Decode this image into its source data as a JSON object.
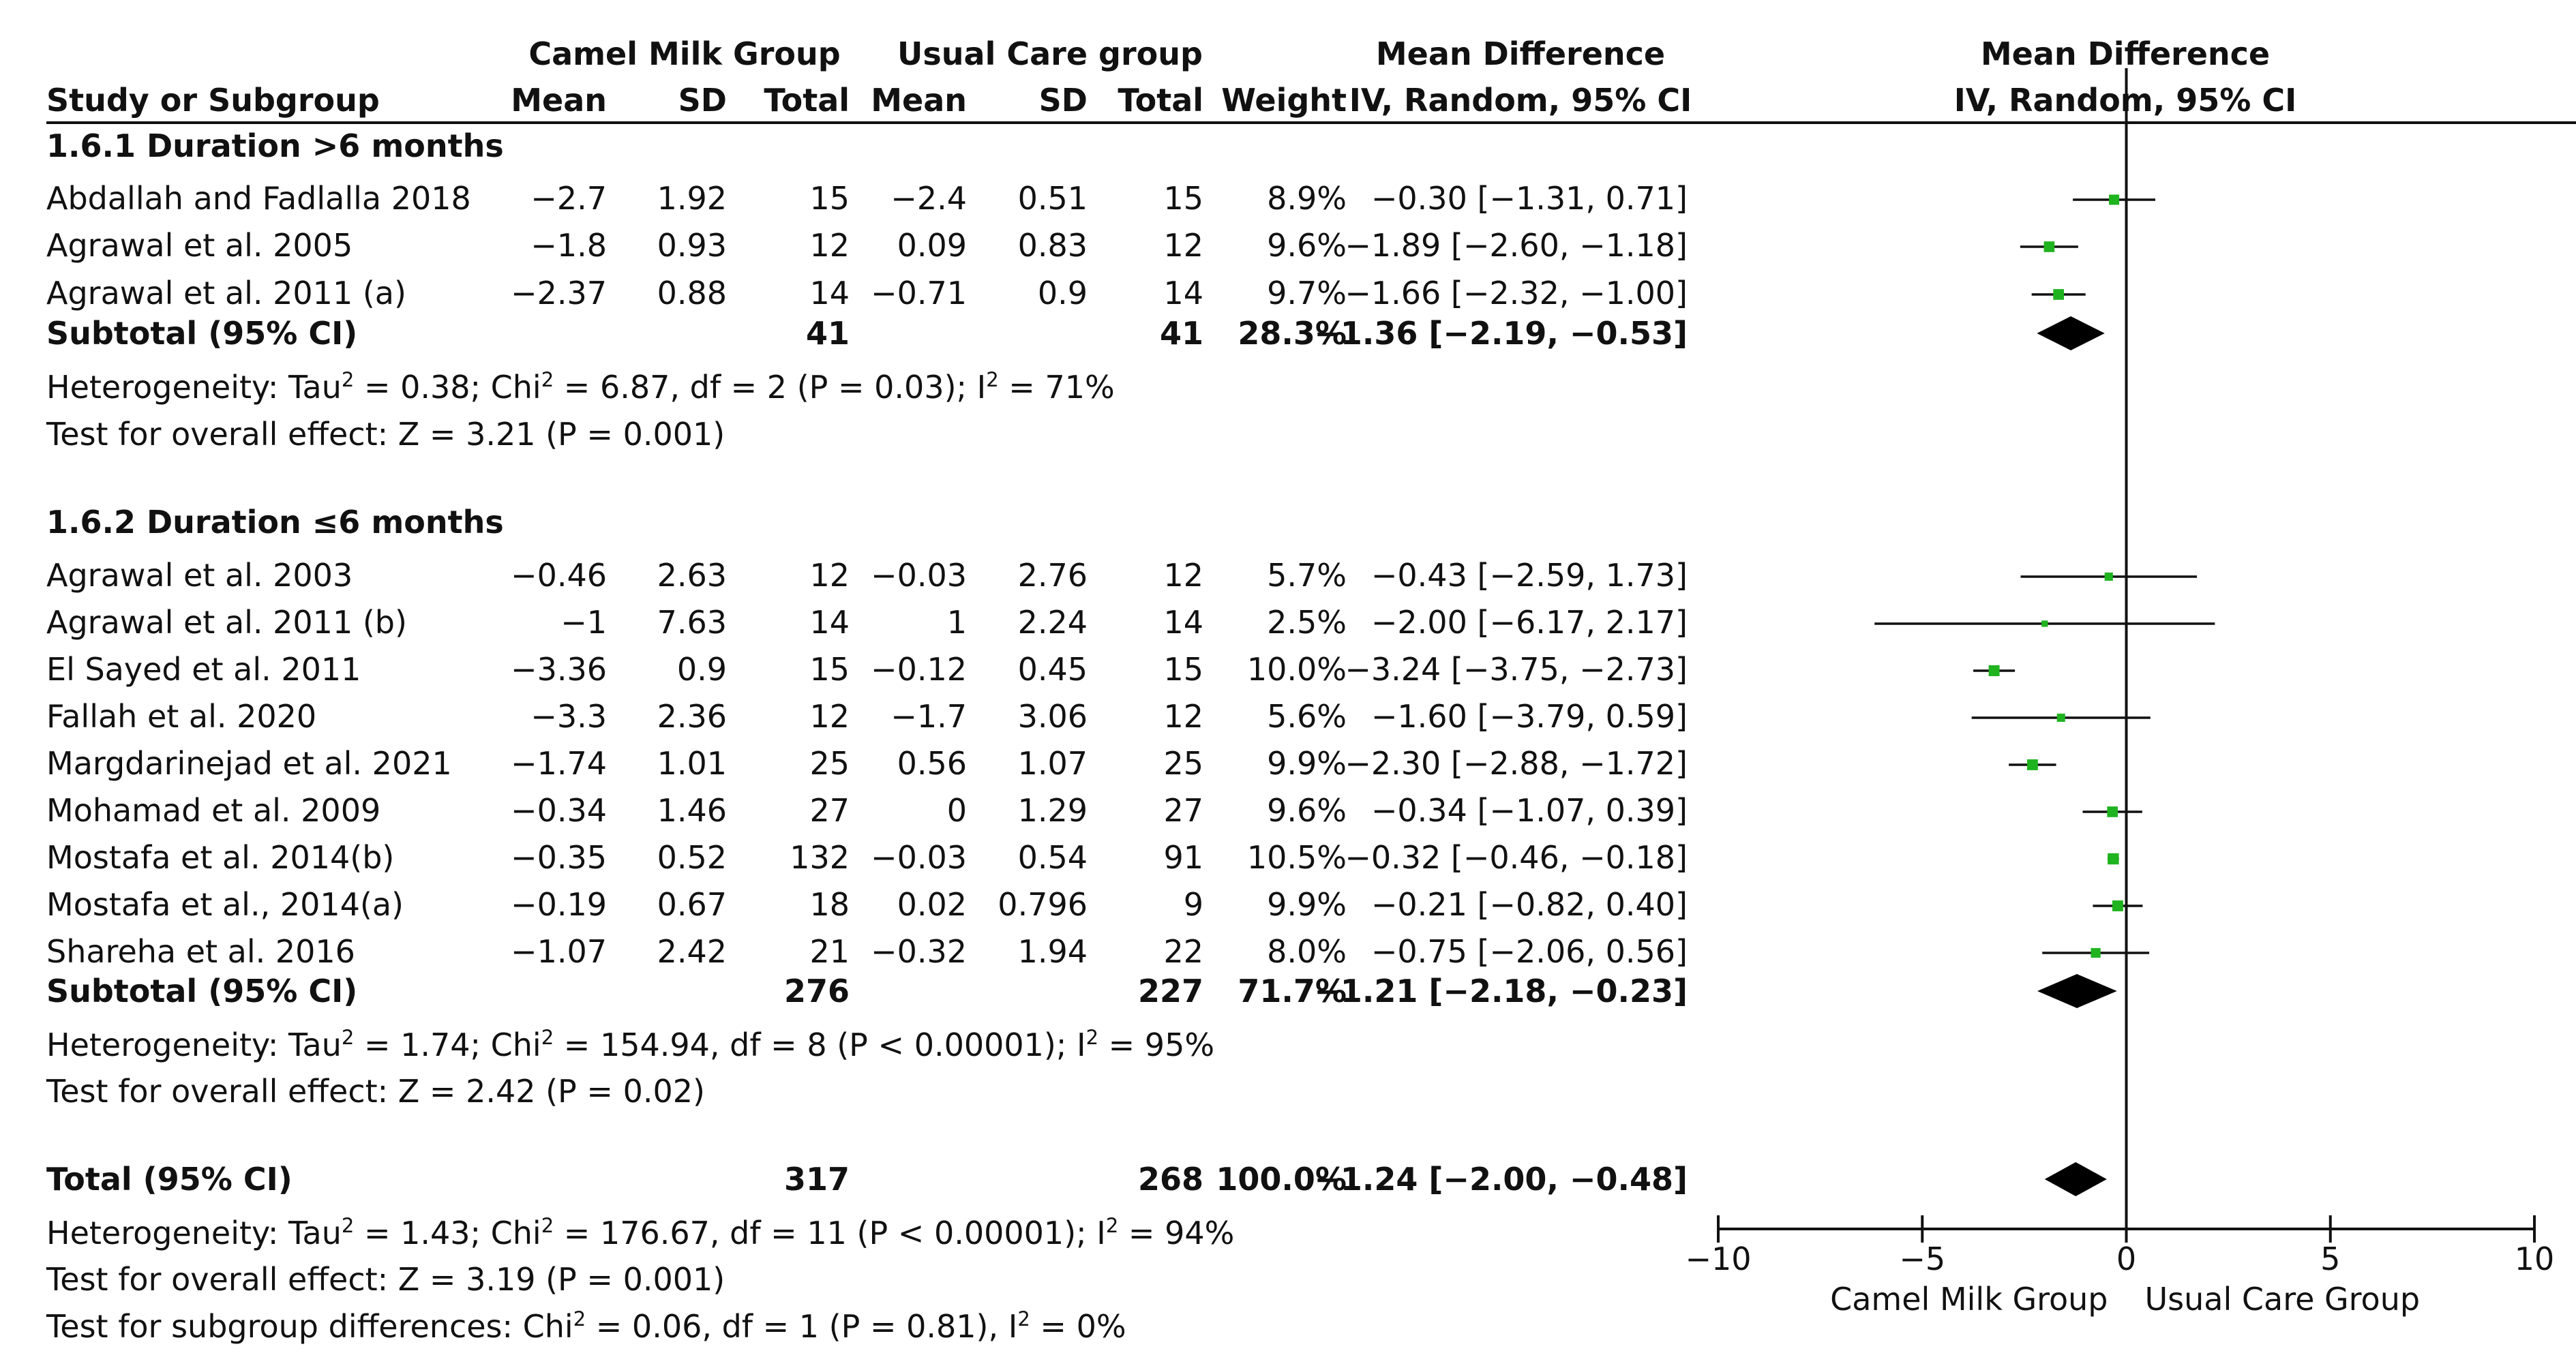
{
  "chart_data": {
    "type": "forest",
    "columns": {
      "study_header": "Study or Subgroup",
      "group1_name": "Camel Milk Group",
      "group2_name": "Usual Care group",
      "mean": "Mean",
      "sd": "SD",
      "total": "Total",
      "weight": "Weight",
      "md_title": "Mean Difference",
      "md_method": "IV, Random, 95% CI",
      "plot_title": "Mean Difference",
      "plot_method": "IV, Random, 95% CI"
    },
    "subgroups": [
      {
        "title": "1.6.1 Duration >6 months",
        "studies": [
          {
            "name": "Abdallah and Fadlalla 2018",
            "m1": "−2.7",
            "sd1": "1.92",
            "n1": "15",
            "m2": "−2.4",
            "sd2": "0.51",
            "n2": "15",
            "weight": "8.9%",
            "ci_text": "−0.30 [−1.31, 0.71]",
            "md": -0.3,
            "lo": -1.31,
            "hi": 0.71,
            "w": 8.9
          },
          {
            "name": "Agrawal et al. 2005",
            "m1": "−1.8",
            "sd1": "0.93",
            "n1": "12",
            "m2": "0.09",
            "sd2": "0.83",
            "n2": "12",
            "weight": "9.6%",
            "ci_text": "−1.89 [−2.60, −1.18]",
            "md": -1.89,
            "lo": -2.6,
            "hi": -1.18,
            "w": 9.6
          },
          {
            "name": "Agrawal et al. 2011 (a)",
            "m1": "−2.37",
            "sd1": "0.88",
            "n1": "14",
            "m2": "−0.71",
            "sd2": "0.9",
            "n2": "14",
            "weight": "9.7%",
            "ci_text": "−1.66 [−2.32, −1.00]",
            "md": -1.66,
            "lo": -2.32,
            "hi": -1.0,
            "w": 9.7
          }
        ],
        "subtotal": {
          "label": "Subtotal (95% CI)",
          "n1": "41",
          "n2": "41",
          "weight": "28.3%",
          "ci_text": "−1.36 [−2.19, −0.53]",
          "md": -1.36,
          "lo": -2.19,
          "hi": -0.53
        },
        "heterogeneity": {
          "prefix": "Heterogeneity: Tau",
          "sup1": "2",
          "mid1": " = 0.38; Chi",
          "sup2": "2",
          "mid2": " = 6.87, df = 2 (P = 0.03); I",
          "sup3": "2",
          "suffix": " = 71%"
        },
        "overall_effect": "Test for overall effect: Z = 3.21 (P = 0.001)"
      },
      {
        "title": "1.6.2 Duration ≤6 months",
        "studies": [
          {
            "name": "Agrawal et al. 2003",
            "m1": "−0.46",
            "sd1": "2.63",
            "n1": "12",
            "m2": "−0.03",
            "sd2": "2.76",
            "n2": "12",
            "weight": "5.7%",
            "ci_text": "−0.43 [−2.59, 1.73]",
            "md": -0.43,
            "lo": -2.59,
            "hi": 1.73,
            "w": 5.7
          },
          {
            "name": "Agrawal et al. 2011 (b)",
            "m1": "−1",
            "sd1": "7.63",
            "n1": "14",
            "m2": "1",
            "sd2": "2.24",
            "n2": "14",
            "weight": "2.5%",
            "ci_text": "−2.00 [−6.17, 2.17]",
            "md": -2.0,
            "lo": -6.17,
            "hi": 2.17,
            "w": 2.5
          },
          {
            "name": "El Sayed et al. 2011",
            "m1": "−3.36",
            "sd1": "0.9",
            "n1": "15",
            "m2": "−0.12",
            "sd2": "0.45",
            "n2": "15",
            "weight": "10.0%",
            "ci_text": "−3.24 [−3.75, −2.73]",
            "md": -3.24,
            "lo": -3.75,
            "hi": -2.73,
            "w": 10.0
          },
          {
            "name": "Fallah et al. 2020",
            "m1": "−3.3",
            "sd1": "2.36",
            "n1": "12",
            "m2": "−1.7",
            "sd2": "3.06",
            "n2": "12",
            "weight": "5.6%",
            "ci_text": "−1.60 [−3.79, 0.59]",
            "md": -1.6,
            "lo": -3.79,
            "hi": 0.59,
            "w": 5.6
          },
          {
            "name": "Margdarinejad et al. 2021",
            "m1": "−1.74",
            "sd1": "1.01",
            "n1": "25",
            "m2": "0.56",
            "sd2": "1.07",
            "n2": "25",
            "weight": "9.9%",
            "ci_text": "−2.30 [−2.88, −1.72]",
            "md": -2.3,
            "lo": -2.88,
            "hi": -1.72,
            "w": 9.9
          },
          {
            "name": "Mohamad et al. 2009",
            "m1": "−0.34",
            "sd1": "1.46",
            "n1": "27",
            "m2": "0",
            "sd2": "1.29",
            "n2": "27",
            "weight": "9.6%",
            "ci_text": "−0.34 [−1.07, 0.39]",
            "md": -0.34,
            "lo": -1.07,
            "hi": 0.39,
            "w": 9.6
          },
          {
            "name": "Mostafa et al. 2014(b)",
            "m1": "−0.35",
            "sd1": "0.52",
            "n1": "132",
            "m2": "−0.03",
            "sd2": "0.54",
            "n2": "91",
            "weight": "10.5%",
            "ci_text": "−0.32 [−0.46, −0.18]",
            "md": -0.32,
            "lo": -0.46,
            "hi": -0.18,
            "w": 10.5
          },
          {
            "name": "Mostafa et al., 2014(a)",
            "m1": "−0.19",
            "sd1": "0.67",
            "n1": "18",
            "m2": "0.02",
            "sd2": "0.796",
            "n2": "9",
            "weight": "9.9%",
            "ci_text": "−0.21 [−0.82, 0.40]",
            "md": -0.21,
            "lo": -0.82,
            "hi": 0.4,
            "w": 9.9
          },
          {
            "name": "Shareha et al. 2016",
            "m1": "−1.07",
            "sd1": "2.42",
            "n1": "21",
            "m2": "−0.32",
            "sd2": "1.94",
            "n2": "22",
            "weight": "8.0%",
            "ci_text": "−0.75 [−2.06, 0.56]",
            "md": -0.75,
            "lo": -2.06,
            "hi": 0.56,
            "w": 8.0
          }
        ],
        "subtotal": {
          "label": "Subtotal (95% CI)",
          "n1": "276",
          "n2": "227",
          "weight": "71.7%",
          "ci_text": "−1.21 [−2.18, −0.23]",
          "md": -1.21,
          "lo": -2.18,
          "hi": -0.23
        },
        "heterogeneity": {
          "prefix": "Heterogeneity: Tau",
          "sup1": "2",
          "mid1": " = 1.74; Chi",
          "sup2": "2",
          "mid2": " = 154.94, df = 8 (P < 0.00001); I",
          "sup3": "2",
          "suffix": " = 95%"
        },
        "overall_effect": "Test for overall effect: Z = 2.42 (P = 0.02)"
      }
    ],
    "total": {
      "label": "Total (95% CI)",
      "n1": "317",
      "n2": "268",
      "weight": "100.0%",
      "ci_text": "−1.24 [−2.00, −0.48]",
      "md": -1.24,
      "lo": -2.0,
      "hi": -0.48
    },
    "total_heterogeneity": {
      "prefix": "Heterogeneity: Tau",
      "sup1": "2",
      "mid1": " = 1.43; Chi",
      "sup2": "2",
      "mid2": " = 176.67, df = 11 (P < 0.00001); I",
      "sup3": "2",
      "suffix": " = 94%"
    },
    "total_overall_effect": "Test for overall effect: Z = 3.19 (P = 0.001)",
    "subgroup_differences": {
      "prefix": "Test for subgroup differences: Chi",
      "sup1": "2",
      "mid1": " = 0.06, df = 1 (P = 0.81), I",
      "sup2": "2",
      "suffix": " = 0%"
    },
    "axis": {
      "xlim": [
        -10,
        10
      ],
      "ticks": [
        -10,
        -5,
        0,
        5,
        10
      ],
      "tick_labels": [
        "−10",
        "−5",
        "0",
        "5",
        "10"
      ],
      "favours_left": "Camel Milk Group",
      "favours_right": "Usual Care Group"
    },
    "colors": {
      "point": "#1fb31f",
      "diamond": "#000000",
      "line": "#111111"
    }
  }
}
